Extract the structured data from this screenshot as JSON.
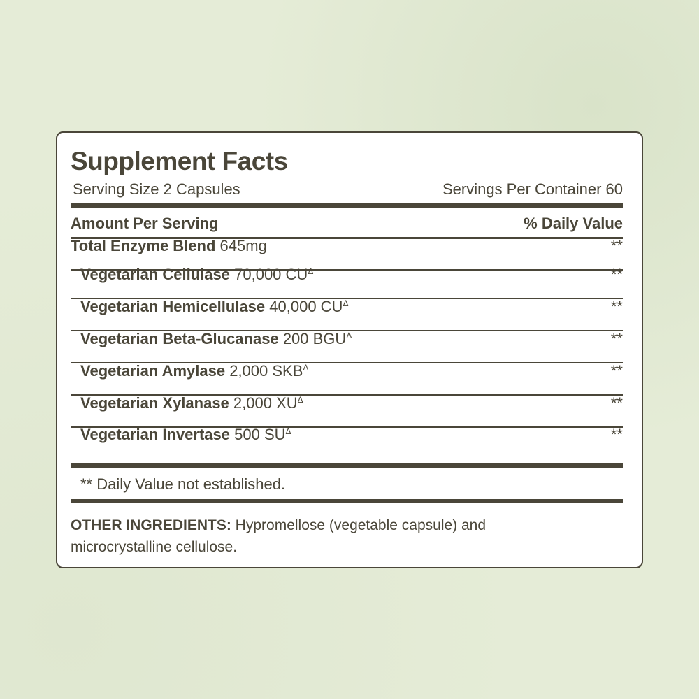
{
  "title": "Supplement Facts",
  "serving_size": "Serving Size 2 Capsules",
  "servings_per_container": "Servings Per Container 60",
  "header": {
    "amount": "Amount Per Serving",
    "dv": "% Daily Value"
  },
  "rows": [
    {
      "name": "Total Enzyme Blend",
      "amount": "645mg",
      "mark": "",
      "dv": "**"
    },
    {
      "name": "Vegetarian Cellulase",
      "amount": "70,000 CU",
      "mark": "Δ",
      "dv": "**"
    },
    {
      "name": "Vegetarian Hemicellulase",
      "amount": "40,000 CU",
      "mark": "Δ",
      "dv": "**"
    },
    {
      "name": "Vegetarian Beta-Glucanase",
      "amount": "200 BGU",
      "mark": "Δ",
      "dv": "**"
    },
    {
      "name": "Vegetarian Amylase",
      "amount": "2,000 SKB",
      "mark": "Δ",
      "dv": "**"
    },
    {
      "name": "Vegetarian Xylanase",
      "amount": "2,000 XU",
      "mark": "Δ",
      "dv": "**"
    },
    {
      "name": "Vegetarian Invertase",
      "amount": "500 SU",
      "mark": "Δ",
      "dv": "**"
    }
  ],
  "footnote": "** Daily Value not established.",
  "other": {
    "label": "OTHER INGREDIENTS:",
    "text": " Hypromellose (vegetable capsule) and microcrystalline cellulose."
  }
}
